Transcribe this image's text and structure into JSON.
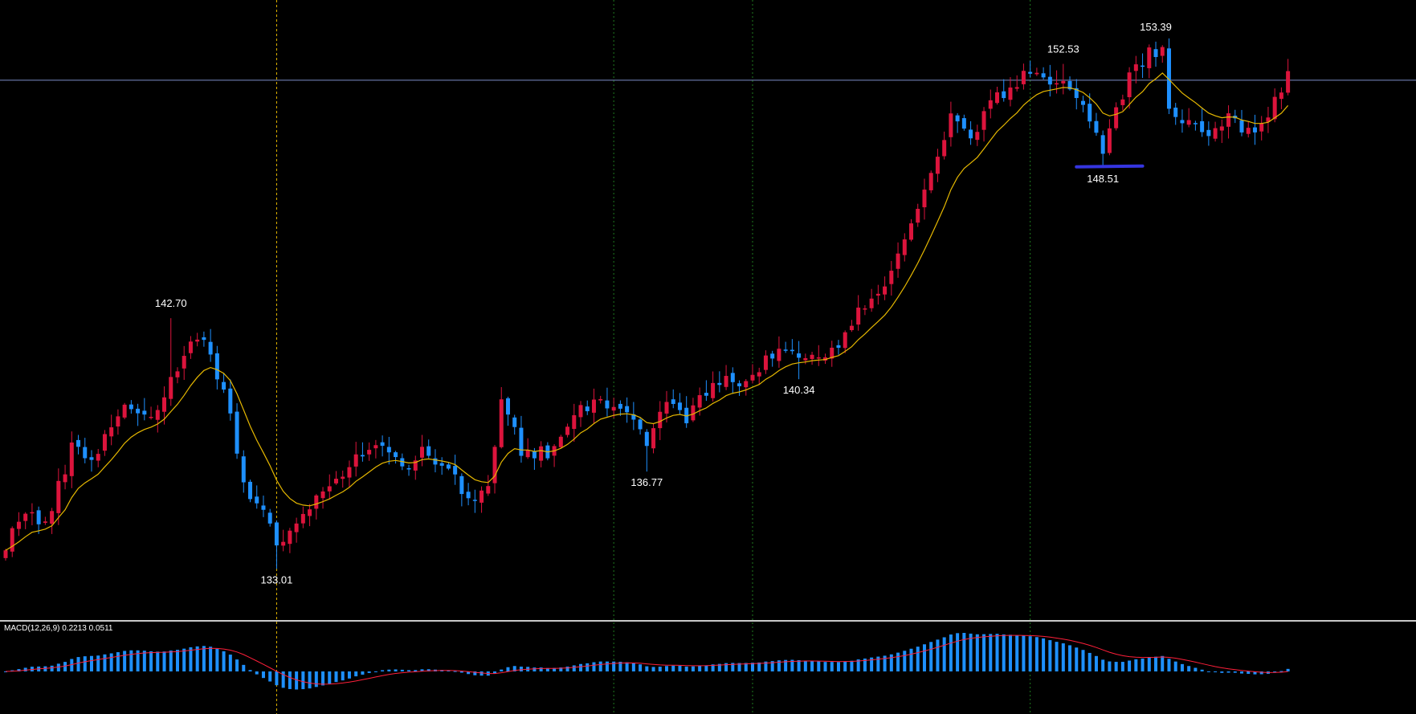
{
  "colors": {
    "background": "#000000",
    "bull": "#dc143c",
    "bear": "#1e90ff",
    "ma": "#e6b800",
    "signal": "#ff1f3a",
    "hline": "#7b8cc8",
    "support": "#3535e0",
    "separator": "#c8c8c8",
    "vgrid": "#1f7a1f",
    "crosshair": "#e6b800"
  },
  "chart_data": {
    "type": "candlestick",
    "price_range": [
      131,
      155
    ],
    "horizontal_level": 151.9,
    "support_level": 148.55,
    "annotations": [
      {
        "text": "142.70",
        "value": 142.7,
        "bar": 25,
        "side": "high"
      },
      {
        "text": "133.01",
        "value": 133.01,
        "bar": 41,
        "side": "low"
      },
      {
        "text": "136.77",
        "value": 136.77,
        "bar": 97,
        "side": "low"
      },
      {
        "text": "140.34",
        "value": 140.34,
        "bar": 120,
        "side": "low"
      },
      {
        "text": "152.53",
        "value": 152.53,
        "bar": 160,
        "side": "high"
      },
      {
        "text": "153.39",
        "value": 153.39,
        "bar": 174,
        "side": "high"
      },
      {
        "text": "148.51",
        "value": 148.51,
        "bar": 166,
        "side": "low"
      }
    ],
    "macd": {
      "label": "MACD(12,26,9) 0.2213 0.0511",
      "params": [
        12,
        26,
        9
      ],
      "macd_value": 0.2213,
      "signal_value": 0.0511
    },
    "anchors": [
      [
        0,
        134.0
      ],
      [
        3,
        135.3
      ],
      [
        6,
        134.6
      ],
      [
        10,
        137.7
      ],
      [
        13,
        137.3
      ],
      [
        18,
        139.3
      ],
      [
        23,
        139.0
      ],
      [
        28,
        142.0
      ],
      [
        30,
        141.8
      ],
      [
        33,
        140.0
      ],
      [
        36,
        136.3
      ],
      [
        39,
        135.3
      ],
      [
        41,
        134.0
      ],
      [
        43,
        134.4
      ],
      [
        47,
        135.6
      ],
      [
        52,
        137.1
      ],
      [
        56,
        137.9
      ],
      [
        60,
        136.9
      ],
      [
        63,
        137.6
      ],
      [
        67,
        137.0
      ],
      [
        70,
        135.5
      ],
      [
        73,
        136.0
      ],
      [
        75,
        139.6
      ],
      [
        78,
        137.6
      ],
      [
        82,
        137.5
      ],
      [
        86,
        139.1
      ],
      [
        90,
        139.6
      ],
      [
        94,
        139.0
      ],
      [
        97,
        138.0
      ],
      [
        100,
        139.4
      ],
      [
        103,
        138.9
      ],
      [
        107,
        140.1
      ],
      [
        112,
        140.4
      ],
      [
        118,
        141.6
      ],
      [
        121,
        141.0
      ],
      [
        126,
        141.6
      ],
      [
        130,
        143.3
      ],
      [
        134,
        144.4
      ],
      [
        136,
        145.9
      ],
      [
        139,
        147.5
      ],
      [
        143,
        150.4
      ],
      [
        146,
        149.8
      ],
      [
        150,
        151.2
      ],
      [
        154,
        152.1
      ],
      [
        158,
        152.0
      ],
      [
        160,
        151.9
      ],
      [
        162,
        151.2
      ],
      [
        164,
        150.2
      ],
      [
        166,
        149.3
      ],
      [
        168,
        150.6
      ],
      [
        170,
        152.0
      ],
      [
        173,
        152.9
      ],
      [
        175,
        153.0
      ],
      [
        176,
        150.7
      ],
      [
        178,
        150.3
      ],
      [
        181,
        150.0
      ],
      [
        183,
        149.9
      ],
      [
        185,
        150.6
      ],
      [
        187,
        149.9
      ],
      [
        189,
        149.7
      ],
      [
        191,
        150.6
      ],
      [
        193,
        151.4
      ],
      [
        194,
        152.0
      ]
    ]
  }
}
